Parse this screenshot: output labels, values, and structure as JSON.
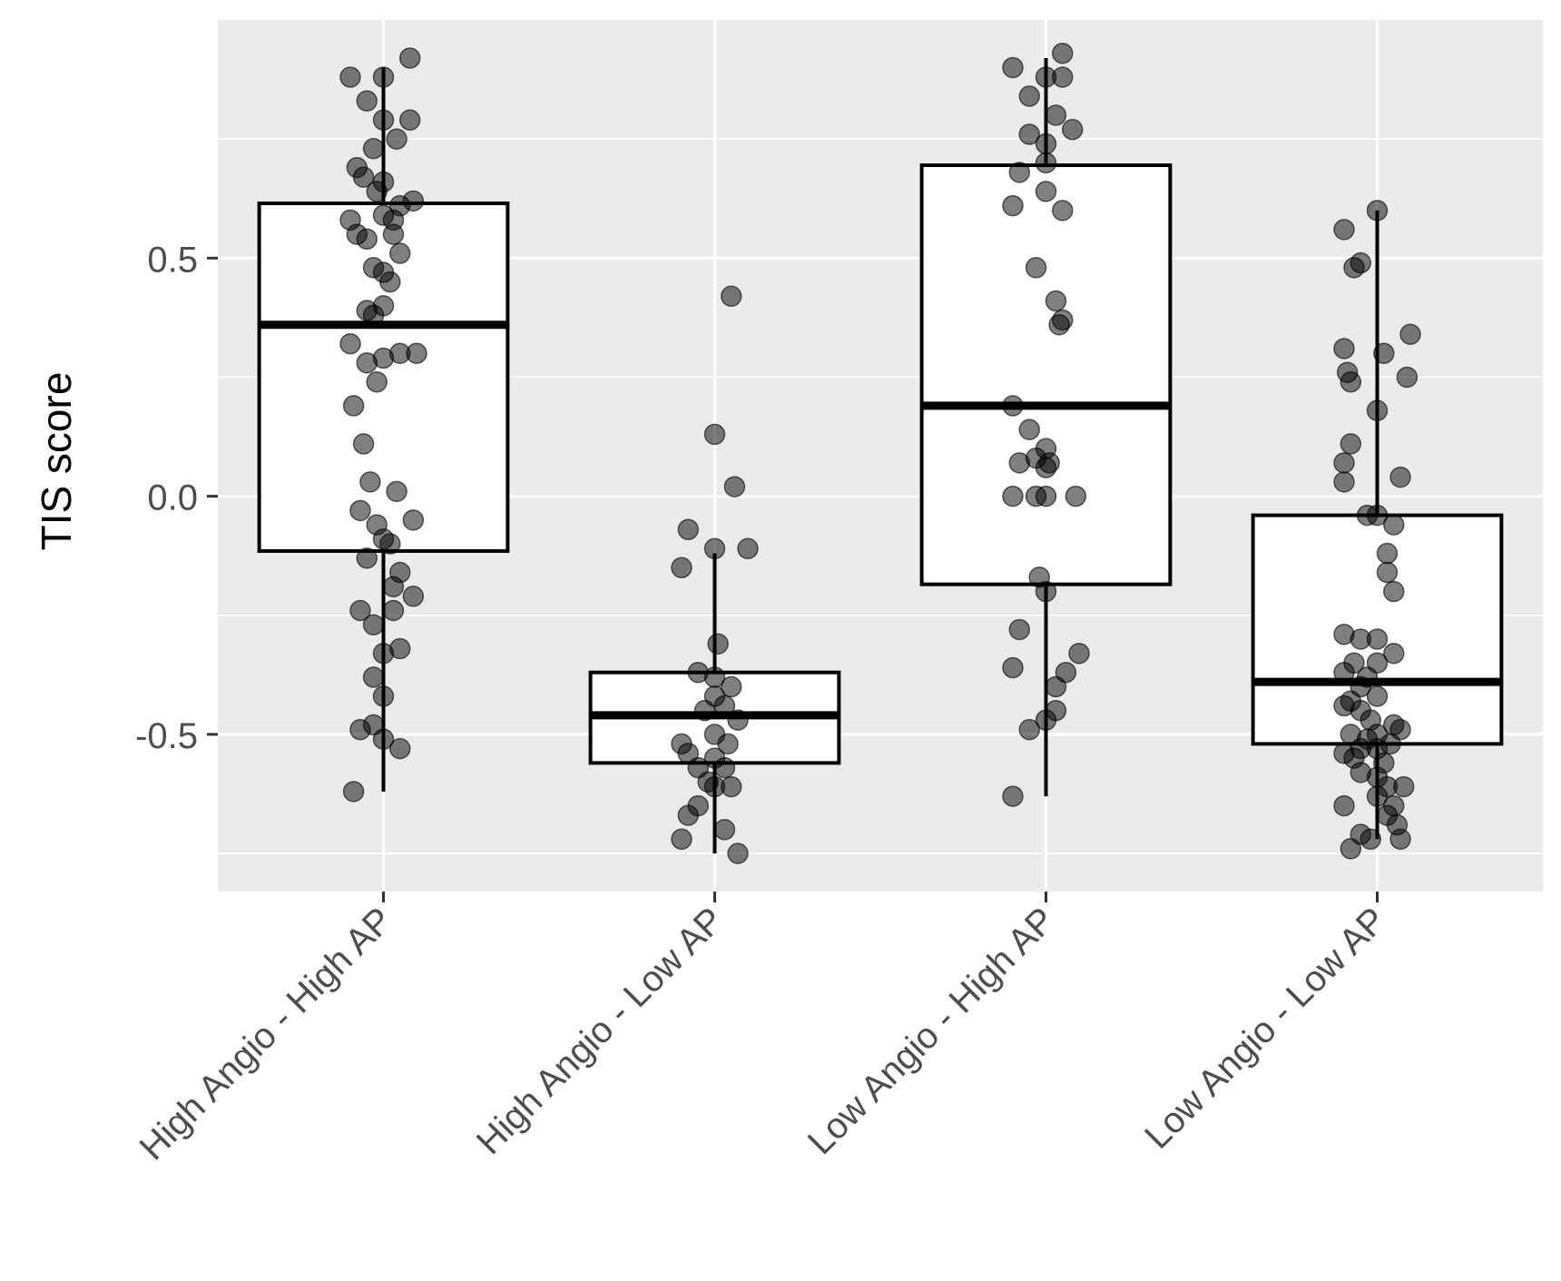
{
  "chart_data": {
    "type": "boxplot",
    "title": "",
    "xlabel": "",
    "ylabel": "TIS score",
    "ylim": [
      -0.83,
      1.0
    ],
    "yticks": [
      -0.5,
      0.0,
      0.5
    ],
    "ytick_labels": [
      "-0.5",
      "0.0",
      "0.5"
    ],
    "categories": [
      "High Angio - High AP",
      "High Angio - Low AP",
      "Low Angio - High AP",
      "Low Angio - Low AP"
    ],
    "boxes": [
      {
        "name": "High Angio - High AP",
        "whisker_low": -0.62,
        "q1": -0.115,
        "median": 0.36,
        "q3": 0.615,
        "whisker_high": 0.9
      },
      {
        "name": "High Angio - Low AP",
        "whisker_low": -0.75,
        "q1": -0.56,
        "median": -0.46,
        "q3": -0.37,
        "whisker_high": -0.12
      },
      {
        "name": "Low Angio - High AP",
        "whisker_low": -0.63,
        "q1": -0.185,
        "median": 0.19,
        "q3": 0.695,
        "whisker_high": 0.92
      },
      {
        "name": "Low Angio - Low AP",
        "whisker_low": -0.72,
        "q1": -0.52,
        "median": -0.39,
        "q3": -0.04,
        "whisker_high": 0.6
      }
    ],
    "points": [
      [
        [
          -0.1,
          0.88
        ],
        [
          0.0,
          0.88
        ],
        [
          0.08,
          0.92
        ],
        [
          -0.05,
          0.83
        ],
        [
          0.0,
          0.79
        ],
        [
          0.08,
          0.79
        ],
        [
          0.04,
          0.75
        ],
        [
          -0.03,
          0.73
        ],
        [
          -0.08,
          0.69
        ],
        [
          -0.06,
          0.67
        ],
        [
          0.0,
          0.66
        ],
        [
          -0.02,
          0.64
        ],
        [
          0.09,
          0.62
        ],
        [
          0.05,
          0.61
        ],
        [
          -0.1,
          0.58
        ],
        [
          0.0,
          0.59
        ],
        [
          0.03,
          0.58
        ],
        [
          -0.08,
          0.55
        ],
        [
          -0.05,
          0.54
        ],
        [
          0.03,
          0.55
        ],
        [
          0.05,
          0.51
        ],
        [
          -0.03,
          0.48
        ],
        [
          0.0,
          0.47
        ],
        [
          0.02,
          0.45
        ],
        [
          0.0,
          0.4
        ],
        [
          -0.05,
          0.39
        ],
        [
          -0.03,
          0.38
        ],
        [
          -0.1,
          0.32
        ],
        [
          0.05,
          0.3
        ],
        [
          0.1,
          0.3
        ],
        [
          0.0,
          0.29
        ],
        [
          -0.05,
          0.28
        ],
        [
          -0.02,
          0.24
        ],
        [
          -0.09,
          0.19
        ],
        [
          -0.06,
          0.11
        ],
        [
          -0.04,
          0.03
        ],
        [
          0.04,
          0.01
        ],
        [
          -0.07,
          -0.03
        ],
        [
          0.09,
          -0.05
        ],
        [
          -0.02,
          -0.06
        ],
        [
          0.0,
          -0.09
        ],
        [
          0.02,
          -0.1
        ],
        [
          -0.05,
          -0.13
        ],
        [
          0.05,
          -0.16
        ],
        [
          0.03,
          -0.19
        ],
        [
          0.09,
          -0.21
        ],
        [
          -0.07,
          -0.24
        ],
        [
          0.03,
          -0.24
        ],
        [
          -0.03,
          -0.27
        ],
        [
          0.05,
          -0.32
        ],
        [
          0.0,
          -0.33
        ],
        [
          -0.03,
          -0.38
        ],
        [
          0.0,
          -0.42
        ],
        [
          -0.07,
          -0.49
        ],
        [
          -0.03,
          -0.48
        ],
        [
          0.0,
          -0.51
        ],
        [
          0.05,
          -0.53
        ],
        [
          -0.09,
          -0.62
        ]
      ],
      [
        [
          0.05,
          0.42
        ],
        [
          0.0,
          0.13
        ],
        [
          0.06,
          0.02
        ],
        [
          -0.08,
          -0.07
        ],
        [
          0.0,
          -0.11
        ],
        [
          0.1,
          -0.11
        ],
        [
          -0.1,
          -0.15
        ],
        [
          0.01,
          -0.31
        ],
        [
          -0.05,
          -0.37
        ],
        [
          0.0,
          -0.38
        ],
        [
          0.05,
          -0.4
        ],
        [
          0.0,
          -0.42
        ],
        [
          0.03,
          -0.44
        ],
        [
          -0.03,
          -0.45
        ],
        [
          0.07,
          -0.47
        ],
        [
          0.0,
          -0.5
        ],
        [
          0.04,
          -0.52
        ],
        [
          -0.1,
          -0.52
        ],
        [
          -0.08,
          -0.54
        ],
        [
          0.0,
          -0.55
        ],
        [
          -0.05,
          -0.57
        ],
        [
          0.03,
          -0.57
        ],
        [
          -0.02,
          -0.6
        ],
        [
          0.0,
          -0.61
        ],
        [
          0.05,
          -0.61
        ],
        [
          -0.05,
          -0.65
        ],
        [
          -0.08,
          -0.67
        ],
        [
          0.03,
          -0.7
        ],
        [
          -0.1,
          -0.72
        ],
        [
          0.07,
          -0.75
        ]
      ],
      [
        [
          -0.1,
          0.9
        ],
        [
          0.0,
          0.88
        ],
        [
          0.05,
          0.93
        ],
        [
          0.05,
          0.88
        ],
        [
          -0.05,
          0.84
        ],
        [
          0.03,
          0.8
        ],
        [
          0.08,
          0.77
        ],
        [
          -0.05,
          0.76
        ],
        [
          0.0,
          0.74
        ],
        [
          0.0,
          0.7
        ],
        [
          -0.08,
          0.68
        ],
        [
          0.0,
          0.64
        ],
        [
          0.05,
          0.6
        ],
        [
          -0.1,
          0.61
        ],
        [
          -0.03,
          0.48
        ],
        [
          0.03,
          0.41
        ],
        [
          0.05,
          0.37
        ],
        [
          0.04,
          0.36
        ],
        [
          -0.1,
          0.19
        ],
        [
          -0.05,
          0.14
        ],
        [
          0.0,
          0.1
        ],
        [
          -0.03,
          0.08
        ],
        [
          0.0,
          0.06
        ],
        [
          -0.08,
          0.07
        ],
        [
          0.01,
          0.07
        ],
        [
          -0.1,
          0.0
        ],
        [
          -0.03,
          0.0
        ],
        [
          0.0,
          0.0
        ],
        [
          0.09,
          0.0
        ],
        [
          -0.02,
          -0.17
        ],
        [
          0.0,
          -0.2
        ],
        [
          -0.08,
          -0.28
        ],
        [
          0.1,
          -0.33
        ],
        [
          0.06,
          -0.37
        ],
        [
          0.03,
          -0.4
        ],
        [
          -0.1,
          -0.36
        ],
        [
          0.03,
          -0.45
        ],
        [
          0.0,
          -0.47
        ],
        [
          -0.05,
          -0.49
        ],
        [
          -0.1,
          -0.63
        ]
      ],
      [
        [
          -0.1,
          0.56
        ],
        [
          0.0,
          0.6
        ],
        [
          -0.07,
          0.48
        ],
        [
          -0.05,
          0.49
        ],
        [
          -0.1,
          0.31
        ],
        [
          0.1,
          0.34
        ],
        [
          0.02,
          0.3
        ],
        [
          -0.09,
          0.26
        ],
        [
          -0.08,
          0.24
        ],
        [
          0.09,
          0.25
        ],
        [
          0.0,
          0.18
        ],
        [
          -0.08,
          0.11
        ],
        [
          -0.1,
          0.07
        ],
        [
          0.07,
          0.04
        ],
        [
          -0.1,
          0.03
        ],
        [
          -0.03,
          -0.04
        ],
        [
          0.0,
          -0.04
        ],
        [
          0.05,
          -0.06
        ],
        [
          0.03,
          -0.12
        ],
        [
          0.03,
          -0.16
        ],
        [
          0.05,
          -0.2
        ],
        [
          -0.1,
          -0.29
        ],
        [
          0.0,
          -0.3
        ],
        [
          -0.05,
          -0.3
        ],
        [
          0.05,
          -0.33
        ],
        [
          0.0,
          -0.35
        ],
        [
          -0.07,
          -0.35
        ],
        [
          -0.1,
          -0.37
        ],
        [
          -0.03,
          -0.38
        ],
        [
          -0.05,
          -0.4
        ],
        [
          0.0,
          -0.42
        ],
        [
          -0.08,
          -0.43
        ],
        [
          -0.1,
          -0.44
        ],
        [
          -0.05,
          -0.45
        ],
        [
          -0.02,
          -0.47
        ],
        [
          0.05,
          -0.48
        ],
        [
          0.07,
          -0.49
        ],
        [
          0.0,
          -0.5
        ],
        [
          -0.08,
          -0.5
        ],
        [
          -0.03,
          -0.51
        ],
        [
          0.04,
          -0.52
        ],
        [
          -0.05,
          -0.53
        ],
        [
          0.0,
          -0.53
        ],
        [
          -0.1,
          -0.54
        ],
        [
          -0.07,
          -0.55
        ],
        [
          0.02,
          -0.56
        ],
        [
          -0.05,
          -0.58
        ],
        [
          0.0,
          -0.59
        ],
        [
          0.03,
          -0.61
        ],
        [
          0.08,
          -0.61
        ],
        [
          0.0,
          -0.63
        ],
        [
          0.05,
          -0.65
        ],
        [
          -0.1,
          -0.65
        ],
        [
          0.03,
          -0.67
        ],
        [
          0.06,
          -0.69
        ],
        [
          -0.05,
          -0.71
        ],
        [
          -0.02,
          -0.72
        ],
        [
          0.07,
          -0.72
        ],
        [
          -0.08,
          -0.74
        ]
      ]
    ],
    "colors": {
      "panel_background": "#ebebeb",
      "grid": "#ffffff",
      "box_fill": "#ffffff",
      "box_stroke": "#000000",
      "point": "#000000",
      "tick_text": "#4d4d4d"
    },
    "point_alpha": 0.5,
    "grid": true,
    "legend": "none"
  }
}
